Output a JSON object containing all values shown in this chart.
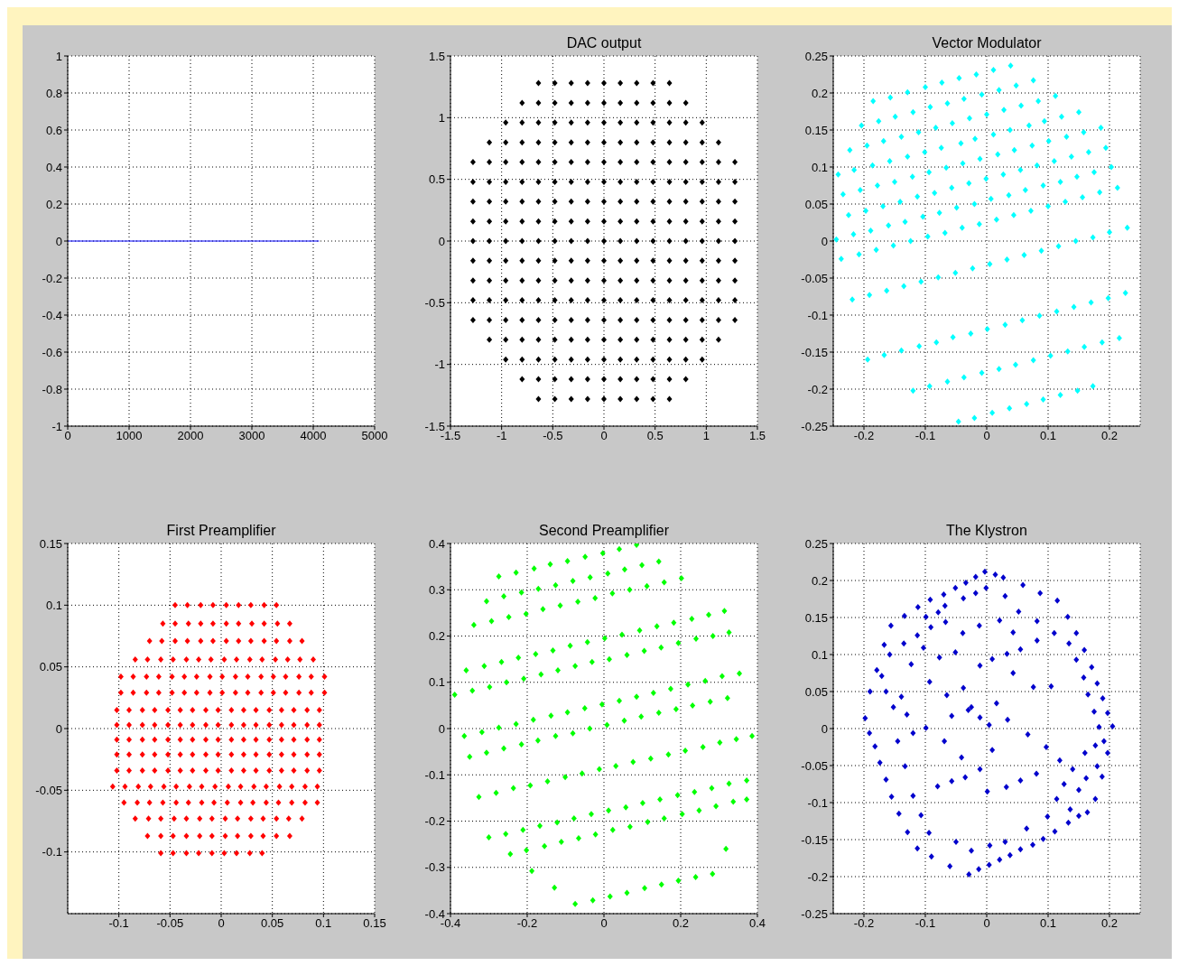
{
  "chart_data": [
    {
      "type": "line",
      "x": [
        0,
        4096
      ],
      "values": [
        0,
        0
      ],
      "color": "#0000ff",
      "marker": "none",
      "line_style": "solid",
      "xlim": [
        0,
        5000
      ],
      "xticks": [
        0,
        1000,
        2000,
        3000,
        4000,
        5000
      ],
      "ylim": [
        -1,
        1
      ],
      "yticks": [
        -1,
        -0.8,
        -0.6,
        -0.4,
        -0.2,
        0,
        0.2,
        0.4,
        0.6,
        0.8,
        1
      ],
      "grid": true
    },
    {
      "type": "scatter",
      "title": "DAC output",
      "color": "#000000",
      "marker": "diamond",
      "xlim": [
        -1.5,
        1.5
      ],
      "xticks": [
        -1.5,
        -1,
        -0.5,
        0,
        0.5,
        1,
        1.5
      ],
      "ylim": [
        -1.5,
        1.5
      ],
      "yticks": [
        -1.5,
        -1,
        -0.5,
        0,
        0.5,
        1,
        1.5
      ],
      "grid": true,
      "x": [
        -0.64,
        -0.48,
        -0.32,
        -0.16,
        0,
        0.16,
        0.32,
        0.48,
        0.64,
        -0.8,
        -0.64,
        -0.48,
        -0.32,
        -0.16,
        0,
        0.16,
        0.32,
        0.48,
        0.64,
        0.8,
        -0.96,
        -0.8,
        -0.64,
        -0.48,
        -0.32,
        -0.16,
        0,
        0.16,
        0.32,
        0.48,
        0.64,
        0.8,
        0.96,
        -1.12,
        -0.96,
        -0.8,
        -0.64,
        -0.48,
        -0.32,
        -0.16,
        0,
        0.16,
        0.32,
        0.48,
        0.64,
        0.8,
        0.96,
        1.12,
        -1.28,
        -1.12,
        -0.96,
        -0.8,
        -0.64,
        -0.48,
        -0.32,
        -0.16,
        0,
        0.16,
        0.32,
        0.48,
        0.64,
        0.8,
        0.96,
        1.12,
        1.28,
        -1.28,
        -1.12,
        -0.96,
        -0.8,
        -0.64,
        -0.48,
        -0.32,
        -0.16,
        0,
        0.16,
        0.32,
        0.48,
        0.64,
        0.8,
        0.96,
        1.12,
        1.28,
        -1.28,
        -1.12,
        -0.96,
        -0.8,
        -0.64,
        -0.48,
        -0.32,
        -0.16,
        0,
        0.16,
        0.32,
        0.48,
        0.64,
        0.8,
        0.96,
        1.12,
        1.28,
        -1.28,
        -1.12,
        -0.96,
        -0.8,
        -0.64,
        -0.48,
        -0.32,
        -0.16,
        0,
        0.16,
        0.32,
        0.48,
        0.64,
        0.8,
        0.96,
        1.12,
        1.28,
        -1.28,
        -1.12,
        -0.96,
        -0.8,
        -0.64,
        -0.48,
        -0.32,
        -0.16,
        0,
        0.16,
        0.32,
        0.48,
        0.64,
        0.8,
        0.96,
        1.12,
        1.28,
        -1.28,
        -1.12,
        -0.96,
        -0.8,
        -0.64,
        -0.48,
        -0.32,
        -0.16,
        0,
        0.16,
        0.32,
        0.48,
        0.64,
        0.8,
        0.96,
        1.12,
        1.28,
        -1.28,
        -1.12,
        -0.96,
        -0.8,
        -0.64,
        -0.48,
        -0.32,
        -0.16,
        0,
        0.16,
        0.32,
        0.48,
        0.64,
        0.8,
        0.96,
        1.12,
        1.28,
        -1.28,
        -1.12,
        -0.96,
        -0.8,
        -0.64,
        -0.48,
        -0.32,
        -0.16,
        0,
        0.16,
        0.32,
        0.48,
        0.64,
        0.8,
        0.96,
        1.12,
        1.28,
        -1.28,
        -1.12,
        -0.96,
        -0.8,
        -0.64,
        -0.48,
        -0.32,
        -0.16,
        0,
        0.16,
        0.32,
        0.48,
        0.64,
        0.8,
        0.96,
        1.12,
        1.28,
        -1.12,
        -0.96,
        -0.8,
        -0.64,
        -0.48,
        -0.32,
        -0.16,
        0,
        0.16,
        0.32,
        0.48,
        0.64,
        0.8,
        0.96,
        1.12,
        -0.96,
        -0.8,
        -0.64,
        -0.48,
        -0.32,
        -0.16,
        0,
        0.16,
        0.32,
        0.48,
        0.64,
        0.8,
        0.96,
        -0.8,
        -0.64,
        -0.48,
        -0.32,
        -0.16,
        0,
        0.16,
        0.32,
        0.48,
        0.64,
        0.8,
        -0.64,
        -0.48,
        -0.32,
        -0.16,
        0,
        0.16,
        0.32,
        0.48,
        0.64
      ],
      "values": [
        1.28,
        1.28,
        1.28,
        1.28,
        1.28,
        1.28,
        1.28,
        1.28,
        1.28,
        1.12,
        1.12,
        1.12,
        1.12,
        1.12,
        1.12,
        1.12,
        1.12,
        1.12,
        1.12,
        1.12,
        0.96,
        0.96,
        0.96,
        0.96,
        0.96,
        0.96,
        0.96,
        0.96,
        0.96,
        0.96,
        0.96,
        0.96,
        0.96,
        0.8,
        0.8,
        0.8,
        0.8,
        0.8,
        0.8,
        0.8,
        0.8,
        0.8,
        0.8,
        0.8,
        0.8,
        0.8,
        0.8,
        0.8,
        0.64,
        0.64,
        0.64,
        0.64,
        0.64,
        0.64,
        0.64,
        0.64,
        0.64,
        0.64,
        0.64,
        0.64,
        0.64,
        0.64,
        0.64,
        0.64,
        0.64,
        0.48,
        0.48,
        0.48,
        0.48,
        0.48,
        0.48,
        0.48,
        0.48,
        0.48,
        0.48,
        0.48,
        0.48,
        0.48,
        0.48,
        0.48,
        0.48,
        0.48,
        0.32,
        0.32,
        0.32,
        0.32,
        0.32,
        0.32,
        0.32,
        0.32,
        0.32,
        0.32,
        0.32,
        0.32,
        0.32,
        0.32,
        0.32,
        0.32,
        0.32,
        0.16,
        0.16,
        0.16,
        0.16,
        0.16,
        0.16,
        0.16,
        0.16,
        0.16,
        0.16,
        0.16,
        0.16,
        0.16,
        0.16,
        0.16,
        0.16,
        0.16,
        0,
        0,
        0,
        0,
        0,
        0,
        0,
        0,
        0,
        0,
        0,
        0,
        0,
        0,
        0,
        0,
        0,
        -0.16,
        -0.16,
        -0.16,
        -0.16,
        -0.16,
        -0.16,
        -0.16,
        -0.16,
        -0.16,
        -0.16,
        -0.16,
        -0.16,
        -0.16,
        -0.16,
        -0.16,
        -0.16,
        -0.16,
        -0.32,
        -0.32,
        -0.32,
        -0.32,
        -0.32,
        -0.32,
        -0.32,
        -0.32,
        -0.32,
        -0.32,
        -0.32,
        -0.32,
        -0.32,
        -0.32,
        -0.32,
        -0.32,
        -0.32,
        -0.48,
        -0.48,
        -0.48,
        -0.48,
        -0.48,
        -0.48,
        -0.48,
        -0.48,
        -0.48,
        -0.48,
        -0.48,
        -0.48,
        -0.48,
        -0.48,
        -0.48,
        -0.48,
        -0.48,
        -0.64,
        -0.64,
        -0.64,
        -0.64,
        -0.64,
        -0.64,
        -0.64,
        -0.64,
        -0.64,
        -0.64,
        -0.64,
        -0.64,
        -0.64,
        -0.64,
        -0.64,
        -0.64,
        -0.64,
        -0.8,
        -0.8,
        -0.8,
        -0.8,
        -0.8,
        -0.8,
        -0.8,
        -0.8,
        -0.8,
        -0.8,
        -0.8,
        -0.8,
        -0.8,
        -0.8,
        -0.8,
        -0.96,
        -0.96,
        -0.96,
        -0.96,
        -0.96,
        -0.96,
        -0.96,
        -0.96,
        -0.96,
        -0.96,
        -0.96,
        -0.96,
        -0.96,
        -1.12,
        -1.12,
        -1.12,
        -1.12,
        -1.12,
        -1.12,
        -1.12,
        -1.12,
        -1.12,
        -1.12,
        -1.12,
        -1.28,
        -1.28,
        -1.28,
        -1.28,
        -1.28,
        -1.28,
        -1.28,
        -1.28,
        -1.28
      ]
    },
    {
      "type": "scatter",
      "title": "Vector Modulator",
      "color": "#00ffff",
      "marker": "diamond",
      "xlim": [
        -0.25,
        0.25
      ],
      "xticks": [
        -0.2,
        -0.1,
        0,
        0.1,
        0.2
      ],
      "ylim": [
        -0.25,
        0.25
      ],
      "yticks": [
        -0.25,
        -0.2,
        -0.15,
        -0.1,
        -0.05,
        0,
        0.05,
        0.1,
        0.15,
        0.2,
        0.25
      ],
      "grid": true,
      "x": [
        0.039,
        0.011,
        -0.017,
        -0.045,
        -0.073,
        -0.1,
        -0.129,
        -0.157,
        -0.185,
        0.048,
        0.076,
        0.02,
        -0.008,
        -0.037,
        -0.064,
        -0.092,
        -0.12,
        -0.149,
        -0.176,
        -0.204,
        0.084,
        0.112,
        0.056,
        0.028,
        0,
        -0.028,
        -0.056,
        -0.083,
        -0.111,
        -0.139,
        -0.168,
        -0.195,
        -0.223,
        0.15,
        0.122,
        0.094,
        0.069,
        0.038,
        0.011,
        -0.019,
        -0.042,
        -0.074,
        -0.101,
        -0.129,
        -0.158,
        -0.186,
        -0.216,
        -0.242,
        0.186,
        0.158,
        0.13,
        0.101,
        0.074,
        0.045,
        0.018,
        -0.011,
        -0.039,
        -0.066,
        -0.094,
        -0.121,
        -0.15,
        -0.178,
        -0.206,
        -0.234,
        0.194,
        0.166,
        0.138,
        0.11,
        0.082,
        0.055,
        0.027,
        -0.001,
        -0.029,
        -0.057,
        -0.085,
        -0.113,
        -0.141,
        -0.169,
        -0.197,
        -0.225,
        0.203,
        0.175,
        0.147,
        0.12,
        0.092,
        0.063,
        0.036,
        0.007,
        -0.02,
        -0.049,
        -0.077,
        -0.104,
        -0.133,
        -0.16,
        -0.189,
        -0.217,
        -0.245,
        0.213,
        0.184,
        0.156,
        0.128,
        0.1,
        0.072,
        0.044,
        0.016,
        -0.012,
        -0.04,
        -0.068,
        -0.096,
        -0.124,
        -0.152,
        -0.18,
        -0.208,
        -0.237,
        0.229,
        0.2,
        0.173,
        0.145,
        0.117,
        0.089,
        0.061,
        0.033,
        0.005,
        -0.023,
        -0.051,
        -0.079,
        -0.107,
        -0.135,
        -0.163,
        -0.191,
        -0.219,
        0.226,
        0.198,
        0.17,
        0.142,
        0.114,
        0.086,
        0.058,
        0.03,
        0.001,
        -0.026,
        -0.055,
        -0.082,
        -0.11,
        -0.139,
        -0.167,
        -0.194,
        0.216,
        0.188,
        0.159,
        0.132,
        0.104,
        0.076,
        0.047,
        0.02,
        -0.008,
        -0.037,
        -0.064,
        -0.093,
        -0.12,
        0.173,
        0.148,
        0.12,
        0.092,
        0.065,
        0.037,
        0.009,
        -0.02,
        -0.046
      ],
      "values": [
        0.237,
        0.231,
        0.225,
        0.22,
        0.214,
        0.208,
        0.201,
        0.194,
        0.189,
        0.21,
        0.217,
        0.204,
        0.198,
        0.192,
        0.186,
        0.181,
        0.174,
        0.168,
        0.162,
        0.156,
        0.189,
        0.196,
        0.183,
        0.177,
        0.171,
        0.166,
        0.159,
        0.153,
        0.147,
        0.141,
        0.135,
        0.129,
        0.123,
        0.174,
        0.168,
        0.162,
        0.156,
        0.15,
        0.144,
        0.138,
        0.132,
        0.126,
        0.12,
        0.114,
        0.108,
        0.102,
        0.096,
        0.09,
        0.153,
        0.147,
        0.141,
        0.135,
        0.129,
        0.123,
        0.117,
        0.111,
        0.105,
        0.099,
        0.093,
        0.087,
        0.08,
        0.075,
        0.069,
        0.063,
        0.126,
        0.12,
        0.114,
        0.108,
        0.102,
        0.096,
        0.09,
        0.084,
        0.078,
        0.072,
        0.065,
        0.06,
        0.053,
        0.047,
        0.041,
        0.035,
        0.1,
        0.093,
        0.087,
        0.08,
        0.075,
        0.069,
        0.062,
        0.057,
        0.05,
        0.045,
        0.038,
        0.033,
        0.026,
        0.021,
        0.014,
        0.009,
        0.002,
        0.072,
        0.066,
        0.059,
        0.053,
        0.047,
        0.041,
        0.035,
        0.029,
        0.023,
        0.018,
        0.011,
        0.006,
        0,
        -0.006,
        -0.012,
        -0.018,
        -0.024,
        0.018,
        0.012,
        0.005,
        0,
        -0.007,
        -0.013,
        -0.019,
        -0.025,
        -0.031,
        -0.037,
        -0.043,
        -0.049,
        -0.055,
        -0.061,
        -0.067,
        -0.073,
        -0.079,
        -0.07,
        -0.077,
        -0.083,
        -0.089,
        -0.095,
        -0.101,
        -0.107,
        -0.113,
        -0.119,
        -0.125,
        -0.13,
        -0.137,
        -0.142,
        -0.148,
        -0.154,
        -0.16,
        -0.131,
        -0.137,
        -0.143,
        -0.149,
        -0.155,
        -0.161,
        -0.167,
        -0.173,
        -0.178,
        -0.184,
        -0.19,
        -0.196,
        -0.202,
        -0.196,
        -0.202,
        -0.208,
        -0.214,
        -0.22,
        -0.226,
        -0.232,
        -0.239,
        -0.244
      ]
    },
    {
      "type": "scatter",
      "title": "First Preamplifier",
      "color": "#ff0000",
      "marker": "diamond",
      "xlim": [
        -0.15,
        0.15
      ],
      "xticks": [
        -0.1,
        -0.05,
        0,
        0.05,
        0.1,
        0.15
      ],
      "ylim": [
        -0.15,
        0.15
      ],
      "yticks": [
        -0.1,
        -0.05,
        0,
        0.05,
        0.1,
        0.15
      ],
      "grid": true,
      "x": [
        -0.045,
        -0.033,
        -0.02,
        -0.008,
        0.005,
        0.017,
        0.029,
        0.042,
        0.054,
        -0.057,
        -0.045,
        -0.032,
        -0.02,
        -0.008,
        0.005,
        0.017,
        0.03,
        0.042,
        0.055,
        0.067,
        -0.07,
        -0.058,
        -0.045,
        -0.033,
        -0.02,
        -0.008,
        0.005,
        0.017,
        0.029,
        0.042,
        0.054,
        0.067,
        0.079,
        -0.084,
        -0.072,
        -0.059,
        -0.047,
        -0.034,
        -0.022,
        -0.01,
        0.003,
        0.015,
        0.028,
        0.04,
        0.053,
        0.065,
        0.077,
        0.09,
        -0.098,
        -0.086,
        -0.073,
        -0.061,
        -0.048,
        -0.036,
        -0.024,
        -0.011,
        0.001,
        0.014,
        0.026,
        0.039,
        0.051,
        0.063,
        0.076,
        0.088,
        0.101,
        -0.098,
        -0.086,
        -0.073,
        -0.061,
        -0.048,
        -0.036,
        -0.024,
        -0.011,
        0.001,
        0.014,
        0.026,
        0.039,
        0.051,
        0.063,
        0.076,
        0.088,
        0.101,
        -0.102,
        -0.09,
        -0.077,
        -0.065,
        -0.052,
        -0.04,
        -0.028,
        -0.015,
        -0.003,
        0.01,
        0.022,
        0.034,
        0.047,
        0.059,
        0.071,
        0.084,
        0.096,
        -0.102,
        -0.09,
        -0.077,
        -0.065,
        -0.052,
        -0.04,
        -0.028,
        -0.015,
        -0.003,
        0.01,
        0.022,
        0.034,
        0.047,
        0.059,
        0.071,
        0.084,
        0.096,
        -0.102,
        -0.09,
        -0.077,
        -0.065,
        -0.052,
        -0.04,
        -0.028,
        -0.015,
        -0.003,
        0.01,
        0.022,
        0.034,
        0.047,
        0.059,
        0.071,
        0.084,
        0.096,
        -0.102,
        -0.09,
        -0.077,
        -0.065,
        -0.052,
        -0.04,
        -0.028,
        -0.015,
        -0.003,
        0.01,
        0.022,
        0.034,
        0.047,
        0.059,
        0.071,
        0.084,
        0.096,
        -0.102,
        -0.09,
        -0.077,
        -0.065,
        -0.052,
        -0.04,
        -0.028,
        -0.015,
        -0.003,
        0.01,
        0.022,
        0.034,
        0.047,
        0.059,
        0.071,
        0.084,
        0.096,
        -0.106,
        -0.094,
        -0.081,
        -0.069,
        -0.056,
        -0.044,
        -0.031,
        -0.019,
        -0.006,
        0.007,
        0.019,
        0.032,
        0.044,
        0.057,
        0.069,
        0.082,
        0.094,
        -0.095,
        -0.082,
        -0.07,
        -0.057,
        -0.044,
        -0.032,
        -0.019,
        -0.007,
        0.006,
        0.019,
        0.031,
        0.044,
        0.056,
        0.069,
        0.082,
        0.094,
        -0.084,
        -0.071,
        -0.059,
        -0.046,
        -0.034,
        -0.021,
        -0.009,
        0.004,
        0.016,
        0.029,
        0.041,
        0.054,
        0.066,
        0.079,
        -0.072,
        -0.059,
        -0.047,
        -0.034,
        -0.021,
        -0.009,
        0.004,
        0.016,
        0.029,
        0.041,
        0.054,
        0.067,
        -0.059,
        -0.047,
        -0.034,
        -0.022,
        -0.009,
        0.003,
        0.015,
        0.028,
        0.04
      ],
      "values": [
        0.1,
        0.1,
        0.1,
        0.1,
        0.1,
        0.1,
        0.1,
        0.1,
        0.1,
        0.085,
        0.085,
        0.085,
        0.085,
        0.085,
        0.085,
        0.085,
        0.085,
        0.085,
        0.085,
        0.085,
        0.071,
        0.071,
        0.071,
        0.071,
        0.071,
        0.071,
        0.071,
        0.071,
        0.071,
        0.071,
        0.071,
        0.071,
        0.071,
        0.056,
        0.056,
        0.056,
        0.056,
        0.056,
        0.056,
        0.056,
        0.056,
        0.056,
        0.056,
        0.056,
        0.056,
        0.056,
        0.056,
        0.056,
        0.042,
        0.042,
        0.042,
        0.042,
        0.042,
        0.042,
        0.042,
        0.042,
        0.042,
        0.042,
        0.042,
        0.042,
        0.042,
        0.042,
        0.042,
        0.042,
        0.042,
        0.029,
        0.029,
        0.029,
        0.029,
        0.029,
        0.029,
        0.029,
        0.029,
        0.029,
        0.029,
        0.029,
        0.029,
        0.029,
        0.029,
        0.029,
        0.029,
        0.029,
        0.015,
        0.015,
        0.015,
        0.015,
        0.015,
        0.015,
        0.015,
        0.015,
        0.015,
        0.015,
        0.015,
        0.015,
        0.015,
        0.015,
        0.015,
        0.015,
        0.015,
        0.003,
        0.003,
        0.003,
        0.003,
        0.003,
        0.003,
        0.003,
        0.003,
        0.003,
        0.003,
        0.003,
        0.003,
        0.003,
        0.003,
        0.003,
        0.003,
        0.003,
        -0.009,
        -0.009,
        -0.009,
        -0.009,
        -0.009,
        -0.009,
        -0.009,
        -0.009,
        -0.009,
        -0.009,
        -0.009,
        -0.009,
        -0.009,
        -0.009,
        -0.009,
        -0.009,
        -0.009,
        -0.021,
        -0.021,
        -0.021,
        -0.021,
        -0.021,
        -0.021,
        -0.021,
        -0.021,
        -0.021,
        -0.021,
        -0.021,
        -0.021,
        -0.021,
        -0.021,
        -0.021,
        -0.021,
        -0.021,
        -0.034,
        -0.034,
        -0.034,
        -0.034,
        -0.034,
        -0.034,
        -0.034,
        -0.034,
        -0.034,
        -0.034,
        -0.034,
        -0.034,
        -0.034,
        -0.034,
        -0.034,
        -0.034,
        -0.034,
        -0.047,
        -0.047,
        -0.047,
        -0.047,
        -0.047,
        -0.047,
        -0.047,
        -0.047,
        -0.047,
        -0.047,
        -0.047,
        -0.047,
        -0.047,
        -0.047,
        -0.047,
        -0.047,
        -0.047,
        -0.06,
        -0.06,
        -0.06,
        -0.06,
        -0.06,
        -0.06,
        -0.06,
        -0.06,
        -0.06,
        -0.06,
        -0.06,
        -0.06,
        -0.06,
        -0.06,
        -0.06,
        -0.06,
        -0.073,
        -0.073,
        -0.073,
        -0.073,
        -0.073,
        -0.073,
        -0.073,
        -0.073,
        -0.073,
        -0.073,
        -0.073,
        -0.073,
        -0.073,
        -0.073,
        -0.087,
        -0.087,
        -0.087,
        -0.087,
        -0.087,
        -0.087,
        -0.087,
        -0.087,
        -0.087,
        -0.087,
        -0.087,
        -0.087,
        -0.101,
        -0.101,
        -0.101,
        -0.101,
        -0.101,
        -0.101,
        -0.101,
        -0.101,
        -0.101
      ]
    },
    {
      "type": "scatter",
      "title": "Second Preamplifier",
      "color": "#00ff00",
      "marker": "diamond",
      "xlim": [
        -0.4,
        0.4
      ],
      "xticks": [
        -0.4,
        -0.2,
        0,
        0.2,
        0.4
      ],
      "ylim": [
        -0.4,
        0.4
      ],
      "yticks": [
        -0.4,
        -0.3,
        -0.2,
        -0.1,
        0,
        0.1,
        0.2,
        0.3,
        0.4
      ],
      "grid": true,
      "x": [
        -0.274,
        -0.229,
        -0.182,
        -0.14,
        -0.095,
        -0.049,
        -0.003,
        0.04,
        0.085,
        -0.306,
        -0.261,
        -0.215,
        -0.171,
        -0.126,
        -0.081,
        -0.036,
        0.01,
        0.054,
        0.099,
        0.143,
        -0.339,
        -0.293,
        -0.248,
        -0.203,
        -0.159,
        -0.114,
        -0.068,
        -0.023,
        0.022,
        0.067,
        0.112,
        0.157,
        0.202,
        -0.359,
        -0.312,
        -0.267,
        -0.223,
        -0.178,
        -0.133,
        -0.088,
        -0.043,
        0.002,
        0.047,
        0.093,
        0.138,
        0.182,
        0.229,
        0.273,
        0.314,
        -0.389,
        -0.343,
        -0.298,
        -0.254,
        -0.209,
        -0.164,
        -0.12,
        -0.075,
        -0.031,
        0.014,
        0.06,
        0.105,
        0.149,
        0.194,
        0.24,
        0.284,
        0.326,
        -0.364,
        -0.318,
        -0.274,
        -0.229,
        -0.184,
        -0.138,
        -0.095,
        -0.05,
        -0.005,
        0.04,
        0.085,
        0.129,
        0.174,
        0.219,
        0.264,
        0.308,
        0.353,
        -0.35,
        -0.306,
        -0.261,
        -0.215,
        -0.172,
        -0.126,
        -0.081,
        -0.037,
        0.008,
        0.053,
        0.097,
        0.143,
        0.188,
        0.231,
        0.277,
        0.322,
        -0.326,
        -0.281,
        -0.236,
        -0.192,
        -0.147,
        -0.101,
        -0.057,
        -0.012,
        0.031,
        0.076,
        0.122,
        0.168,
        0.212,
        0.258,
        0.302,
        0.345,
        0.386,
        -0.3,
        -0.256,
        -0.211,
        -0.167,
        -0.122,
        -0.078,
        -0.033,
        0.012,
        0.057,
        0.101,
        0.146,
        0.192,
        0.236,
        0.281,
        0.326,
        0.372,
        -0.244,
        -0.202,
        -0.155,
        -0.111,
        -0.066,
        -0.022,
        0.023,
        0.068,
        0.114,
        0.157,
        0.204,
        0.248,
        0.292,
        0.337,
        0.372,
        -0.188,
        -0.129,
        -0.075,
        -0.029,
        0.016,
        0.06,
        0.106,
        0.15,
        0.194,
        0.239,
        0.283,
        0.318
      ],
      "values": [
        0.329,
        0.337,
        0.346,
        0.355,
        0.362,
        0.371,
        0.379,
        0.388,
        0.397,
        0.275,
        0.286,
        0.294,
        0.302,
        0.31,
        0.319,
        0.327,
        0.335,
        0.344,
        0.353,
        0.361,
        0.224,
        0.232,
        0.241,
        0.248,
        0.258,
        0.266,
        0.274,
        0.282,
        0.292,
        0.3,
        0.308,
        0.316,
        0.325,
        0.126,
        0.135,
        0.144,
        0.153,
        0.161,
        0.169,
        0.179,
        0.187,
        0.195,
        0.203,
        0.212,
        0.221,
        0.229,
        0.237,
        0.246,
        0.254,
        0.073,
        0.082,
        0.09,
        0.1,
        0.108,
        0.117,
        0.126,
        0.135,
        0.144,
        0.15,
        0.159,
        0.168,
        0.175,
        0.185,
        0.194,
        0.2,
        0.208,
        -0.016,
        -0.008,
        0.002,
        0.01,
        0.019,
        0.028,
        0.035,
        0.044,
        0.052,
        0.06,
        0.069,
        0.077,
        0.086,
        0.095,
        0.103,
        0.113,
        0.119,
        -0.061,
        -0.052,
        -0.043,
        -0.034,
        -0.026,
        -0.016,
        -0.01,
        0,
        0.008,
        0.017,
        0.026,
        0.034,
        0.042,
        0.05,
        0.058,
        0.066,
        -0.148,
        -0.139,
        -0.129,
        -0.123,
        -0.114,
        -0.105,
        -0.097,
        -0.088,
        -0.081,
        -0.072,
        -0.065,
        -0.056,
        -0.048,
        -0.04,
        -0.03,
        -0.023,
        -0.016,
        -0.235,
        -0.228,
        -0.219,
        -0.21,
        -0.203,
        -0.194,
        -0.185,
        -0.177,
        -0.17,
        -0.161,
        -0.153,
        -0.144,
        -0.137,
        -0.129,
        -0.119,
        -0.112,
        -0.271,
        -0.263,
        -0.254,
        -0.245,
        -0.237,
        -0.229,
        -0.219,
        -0.212,
        -0.202,
        -0.194,
        -0.185,
        -0.177,
        -0.168,
        -0.158,
        -0.153,
        -0.308,
        -0.344,
        -0.379,
        -0.371,
        -0.363,
        -0.355,
        -0.345,
        -0.337,
        -0.329,
        -0.321,
        -0.314,
        -0.26
      ]
    },
    {
      "type": "scatter",
      "title": "The Klystron",
      "color": "#0000cc",
      "marker": "diamond",
      "xlim": [
        -0.25,
        0.25
      ],
      "xticks": [
        -0.2,
        -0.1,
        0,
        0.1,
        0.2
      ],
      "ylim": [
        -0.25,
        0.25
      ],
      "yticks": [
        -0.25,
        -0.2,
        -0.15,
        -0.1,
        -0.05,
        0,
        0.05,
        0.1,
        0.15,
        0.2,
        0.25
      ],
      "grid": true,
      "x": [
        -0.003,
        0.027,
        0.059,
        0.087,
        0.115,
        0.132,
        0.146,
        0.159,
        0.171,
        0.18,
        0.189,
        0.197,
        0.205,
        0.197,
        0.188,
        0.177,
        0.164,
        0.15,
        0.133,
        0.111,
        0.092,
        0.075,
        0.055,
        0.038,
        0.021,
        0.004,
        -0.013,
        -0.029,
        -0.06,
        -0.09,
        -0.113,
        -0.129,
        -0.143,
        -0.155,
        -0.164,
        -0.174,
        -0.182,
        -0.191,
        -0.198,
        -0.19,
        -0.179,
        -0.167,
        -0.156,
        -0.134,
        -0.112,
        -0.092,
        -0.07,
        -0.051,
        -0.034,
        -0.018,
        0.014,
        -0.001,
        0.03,
        0.052,
        0.082,
        0.11,
        0.134,
        0.146,
        0.158,
        0.165,
        0.175,
        0.183,
        0.191,
        0.18,
        0.162,
        0.15,
        0.136,
        -0.018,
        -0.038,
        -0.068,
        -0.091,
        -0.113,
        -0.135,
        -0.158,
        -0.171,
        -0.164,
        -0.152,
        -0.145,
        -0.133,
        -0.12,
        -0.107,
        -0.094,
        -0.05,
        -0.025,
        0.005,
        0.03,
        0.065,
        0.099,
        0.114,
        0.126,
        0.14,
        0.16,
        0.177,
        -0.079,
        -0.051,
        -0.038,
        -0.025,
        -0.011,
        0.004,
        0.034,
        0.067,
        0.097,
        0.119,
        0.105,
        0.076,
        0.043,
        0.016,
        -0.011,
        -0.035,
        -0.057,
        -0.08,
        0.001,
        0.032,
        0.055,
        0.081,
        0.009,
        -0.041,
        -0.069,
        -0.099,
        -0.12,
        -0.093,
        -0.065,
        -0.057,
        -0.077,
        -0.103,
        -0.123,
        -0.139,
        -0.13,
        -0.03,
        -0.011,
        0.009,
        0.033,
        0.055,
        0.082,
        -0.012,
        0.021,
        0.043,
        -0.039,
        -0.067,
        -0.099
      ],
      "values": [
        0.212,
        0.204,
        0.194,
        0.183,
        0.173,
        0.151,
        0.129,
        0.106,
        0.083,
        0.061,
        0.041,
        0.021,
        0.003,
        -0.033,
        -0.065,
        -0.095,
        -0.113,
        -0.118,
        -0.127,
        -0.139,
        -0.149,
        -0.157,
        -0.163,
        -0.171,
        -0.177,
        -0.184,
        -0.19,
        -0.197,
        -0.186,
        -0.173,
        -0.162,
        -0.14,
        -0.115,
        -0.092,
        -0.069,
        -0.046,
        -0.024,
        -0.006,
        0.014,
        0.05,
        0.079,
        0.113,
        0.139,
        0.152,
        0.164,
        0.174,
        0.181,
        0.19,
        0.197,
        0.205,
        0.208,
        0.19,
        0.179,
        0.158,
        0.145,
        0.129,
        0.115,
        0.093,
        0.069,
        0.046,
        0.023,
        0.002,
        -0.017,
        -0.051,
        -0.067,
        -0.083,
        -0.109,
        0.183,
        0.176,
        0.166,
        0.137,
        0.126,
        0.115,
        0.1,
        0.071,
        0.05,
        0.029,
        -0.017,
        -0.051,
        -0.091,
        -0.117,
        -0.141,
        -0.153,
        -0.165,
        -0.158,
        -0.153,
        -0.135,
        -0.119,
        -0.095,
        -0.075,
        -0.055,
        -0.033,
        -0.023,
        0.157,
        0.103,
        0.055,
        0.029,
        0.015,
        0.005,
        0.012,
        -0.008,
        -0.025,
        -0.043,
        0.057,
        0.056,
        0.075,
        0.034,
        -0.055,
        -0.066,
        -0.071,
        -0.078,
        -0.085,
        -0.079,
        -0.07,
        -0.061,
        -0.029,
        -0.039,
        -0.017,
        0.001,
        -0.006,
        0.063,
        0.045,
        0.017,
        0.096,
        0.109,
        0.087,
        0.043,
        0.019,
        0.025,
        0.085,
        0.094,
        0.101,
        0.107,
        0.119,
        0.139,
        0.146,
        0.13,
        0.129,
        0.144,
        0.151
      ]
    }
  ]
}
